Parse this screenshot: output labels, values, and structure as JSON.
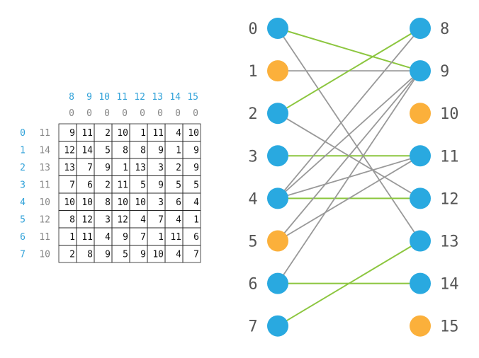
{
  "colors": {
    "blue_node": "#29a9e0",
    "orange_node": "#fbb03b",
    "grey_edge": "#999999",
    "green_edge": "#8cc63f",
    "index_text": "#31a2d9",
    "potential_text": "#888888"
  },
  "matrix": {
    "col_indices": [
      "8",
      "9",
      "10",
      "11",
      "12",
      "13",
      "14",
      "15"
    ],
    "col_potentials": [
      "0",
      "0",
      "0",
      "0",
      "0",
      "0",
      "0",
      "0"
    ],
    "row_indices": [
      "0",
      "1",
      "2",
      "3",
      "4",
      "5",
      "6",
      "7"
    ],
    "row_potentials": [
      "11",
      "14",
      "13",
      "11",
      "10",
      "12",
      "11",
      "10"
    ],
    "cells": [
      [
        "9",
        "11",
        "2",
        "10",
        "1",
        "11",
        "4",
        "10"
      ],
      [
        "12",
        "14",
        "5",
        "8",
        "8",
        "9",
        "1",
        "9"
      ],
      [
        "13",
        "7",
        "9",
        "1",
        "13",
        "3",
        "2",
        "9"
      ],
      [
        "7",
        "6",
        "2",
        "11",
        "5",
        "9",
        "5",
        "5"
      ],
      [
        "10",
        "10",
        "8",
        "10",
        "10",
        "3",
        "6",
        "4"
      ],
      [
        "8",
        "12",
        "3",
        "12",
        "4",
        "7",
        "4",
        "1"
      ],
      [
        "1",
        "11",
        "4",
        "9",
        "7",
        "1",
        "11",
        "6"
      ],
      [
        "2",
        "8",
        "9",
        "5",
        "9",
        "10",
        "4",
        "7"
      ]
    ]
  },
  "graph": {
    "left_nodes": [
      {
        "label": "0",
        "color": "blue"
      },
      {
        "label": "1",
        "color": "orange"
      },
      {
        "label": "2",
        "color": "blue"
      },
      {
        "label": "3",
        "color": "blue"
      },
      {
        "label": "4",
        "color": "blue"
      },
      {
        "label": "5",
        "color": "orange"
      },
      {
        "label": "6",
        "color": "blue"
      },
      {
        "label": "7",
        "color": "blue"
      }
    ],
    "right_nodes": [
      {
        "label": "8",
        "color": "blue"
      },
      {
        "label": "9",
        "color": "blue"
      },
      {
        "label": "10",
        "color": "orange"
      },
      {
        "label": "11",
        "color": "blue"
      },
      {
        "label": "12",
        "color": "blue"
      },
      {
        "label": "13",
        "color": "blue"
      },
      {
        "label": "14",
        "color": "blue"
      },
      {
        "label": "15",
        "color": "orange"
      }
    ],
    "edges": [
      {
        "from": 0,
        "to": 9,
        "type": "green"
      },
      {
        "from": 0,
        "to": 13,
        "type": "grey"
      },
      {
        "from": 1,
        "to": 9,
        "type": "grey"
      },
      {
        "from": 2,
        "to": 8,
        "type": "green"
      },
      {
        "from": 2,
        "to": 12,
        "type": "grey"
      },
      {
        "from": 3,
        "to": 11,
        "type": "green"
      },
      {
        "from": 4,
        "to": 8,
        "type": "grey"
      },
      {
        "from": 4,
        "to": 9,
        "type": "grey"
      },
      {
        "from": 4,
        "to": 11,
        "type": "grey"
      },
      {
        "from": 4,
        "to": 12,
        "type": "green"
      },
      {
        "from": 5,
        "to": 9,
        "type": "grey"
      },
      {
        "from": 5,
        "to": 11,
        "type": "grey"
      },
      {
        "from": 6,
        "to": 9,
        "type": "grey"
      },
      {
        "from": 6,
        "to": 14,
        "type": "green"
      },
      {
        "from": 7,
        "to": 13,
        "type": "green"
      }
    ]
  }
}
